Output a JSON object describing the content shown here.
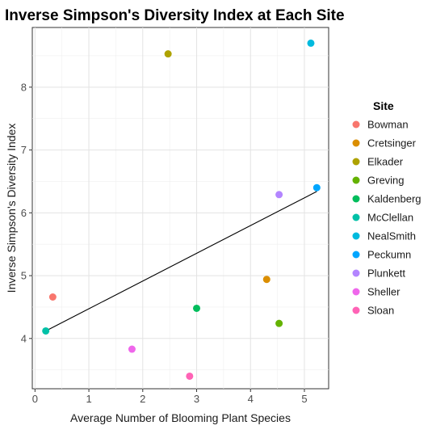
{
  "chart_data": {
    "type": "scatter",
    "title": "Inverse Simpson's Diversity Index at Each Site",
    "xlabel": "Average Number of Blooming Plant Species",
    "ylabel": "Inverse Simpson's Diversity Index",
    "xlim": [
      -0.05,
      5.45
    ],
    "ylim": [
      3.2,
      8.95
    ],
    "x_ticks": [
      0,
      1,
      2,
      3,
      4,
      5
    ],
    "y_ticks": [
      4,
      5,
      6,
      7,
      8
    ],
    "x_tick_labels": [
      "0",
      "1",
      "2",
      "3",
      "4",
      "5"
    ],
    "y_tick_labels": [
      "4",
      "5",
      "6",
      "7",
      "8"
    ],
    "grid": true,
    "legend_title": "Site",
    "legend_position": "right",
    "series": [
      {
        "name": "Bowman",
        "color": "#F8766D",
        "x": [
          0.33
        ],
        "y": [
          4.66
        ]
      },
      {
        "name": "Cretsinger",
        "color": "#DB8E00",
        "x": [
          4.3
        ],
        "y": [
          4.94
        ]
      },
      {
        "name": "Elkader",
        "color": "#AEA200",
        "x": [
          2.47
        ],
        "y": [
          8.53
        ]
      },
      {
        "name": "Greving",
        "color": "#64B200",
        "x": [
          4.53
        ],
        "y": [
          4.24
        ]
      },
      {
        "name": "Kaldenberg",
        "color": "#00BD5C",
        "x": [
          3.0
        ],
        "y": [
          4.48
        ]
      },
      {
        "name": "McClellan",
        "color": "#00C1A7",
        "x": [
          0.2
        ],
        "y": [
          4.12
        ]
      },
      {
        "name": "NealSmith",
        "color": "#00BADE",
        "x": [
          5.12
        ],
        "y": [
          8.7
        ]
      },
      {
        "name": "Peckumn",
        "color": "#00A6FF",
        "x": [
          5.23
        ],
        "y": [
          6.4
        ]
      },
      {
        "name": "Plunkett",
        "color": "#B385FF",
        "x": [
          4.53
        ],
        "y": [
          6.29
        ]
      },
      {
        "name": "Sheller",
        "color": "#EF67EB",
        "x": [
          1.8
        ],
        "y": [
          3.83
        ]
      },
      {
        "name": "Sloan",
        "color": "#FF63B6",
        "x": [
          2.87
        ],
        "y": [
          3.4
        ]
      }
    ],
    "trend_line": {
      "x": [
        0.2,
        5.23
      ],
      "y": [
        4.12,
        6.34
      ],
      "color": "#000000"
    }
  }
}
